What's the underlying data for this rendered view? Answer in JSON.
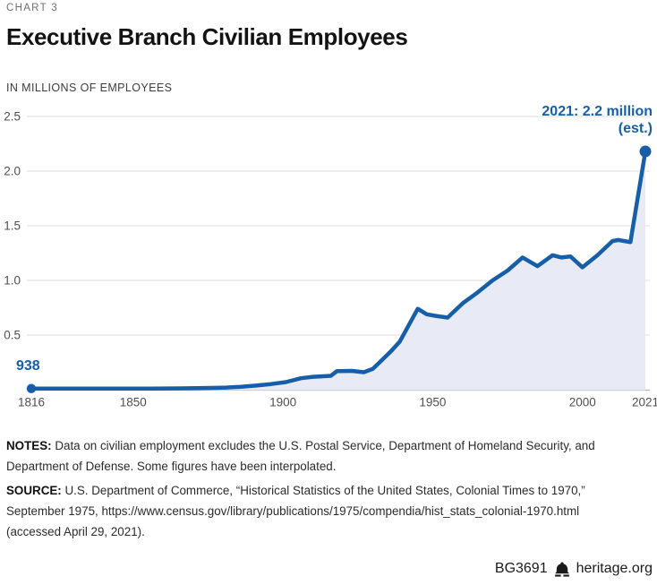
{
  "colors": {
    "accent_blue": "#165fa8",
    "area_fill": "#e8ebf5",
    "grid": "#dcdcdc",
    "axis": "#b4b4b4",
    "tick_text": "#4f4f4f",
    "kicker_gray": "#6e6e6e",
    "title_black": "#131313",
    "subtitle_gray": "#3d3d3d",
    "notes_text": "#2b2b2b",
    "footer_text": "#1a1a1a"
  },
  "header": {
    "kicker": "CHART 3",
    "title": "Executive Branch Civilian Employees",
    "subtitle": "IN MILLIONS OF EMPLOYEES"
  },
  "chart_data": {
    "type": "area",
    "title": "Executive Branch Civilian Employees",
    "ylabel": "IN MILLIONS OF EMPLOYEES",
    "xlabel": "",
    "xlim": [
      1816,
      2021
    ],
    "ylim": [
      0,
      2.5
    ],
    "grid": "horizontal",
    "legend": "none",
    "x": [
      1816,
      1826,
      1836,
      1846,
      1856,
      1866,
      1876,
      1881,
      1886,
      1891,
      1896,
      1901,
      1906,
      1910,
      1916,
      1918,
      1923,
      1927,
      1930,
      1933,
      1936,
      1939,
      1945,
      1948,
      1951,
      1955,
      1960,
      1965,
      1970,
      1975,
      1980,
      1985,
      1990,
      1993,
      1996,
      2000,
      2005,
      2010,
      2012,
      2016,
      2021
    ],
    "values": [
      0.001,
      0.002,
      0.004,
      0.006,
      0.009,
      0.012,
      0.016,
      0.02,
      0.027,
      0.038,
      0.052,
      0.07,
      0.105,
      0.118,
      0.127,
      0.17,
      0.172,
      0.16,
      0.19,
      0.27,
      0.35,
      0.44,
      0.74,
      0.69,
      0.675,
      0.66,
      0.79,
      0.89,
      1.0,
      1.09,
      1.21,
      1.13,
      1.23,
      1.21,
      1.22,
      1.12,
      1.23,
      1.36,
      1.37,
      1.35,
      2.18
    ],
    "y_ticks": [
      0.5,
      1.0,
      1.5,
      2.0,
      2.5
    ],
    "y_tick_labels": [
      "0.5",
      "1.0",
      "1.5",
      "2.0",
      "2.5"
    ],
    "x_tick_years": [
      1816,
      1850,
      1900,
      1950,
      2000,
      2021
    ],
    "x_tick_labels": [
      "1816",
      "1850",
      "1900",
      "1950",
      "2000",
      "2021"
    ],
    "annotations": {
      "start_label": "938",
      "end_label_line1": "2021: 2.2 million",
      "end_label_line2": "(est.)"
    }
  },
  "notes": {
    "notes_label": "NOTES:",
    "notes_lines": [
      "Data on civilian employment excludes the U.S. Postal Service, Department of Homeland Security, and",
      "Department of Defense. Some figures have been interpolated."
    ],
    "source_label": "SOURCE:",
    "source_lines": [
      "U.S. Department of Commerce, “Historical Statistics of the United States, Colonial Times to 1970,”",
      "September 1975, https://www.census.gov/library/publications/1975/compendia/hist_stats_colonial-1970.html",
      "(accessed April 29, 2021)."
    ]
  },
  "footer": {
    "doc_id": "BG3691",
    "logo_icon": "liberty-bell-icon",
    "site": "heritage.org"
  }
}
